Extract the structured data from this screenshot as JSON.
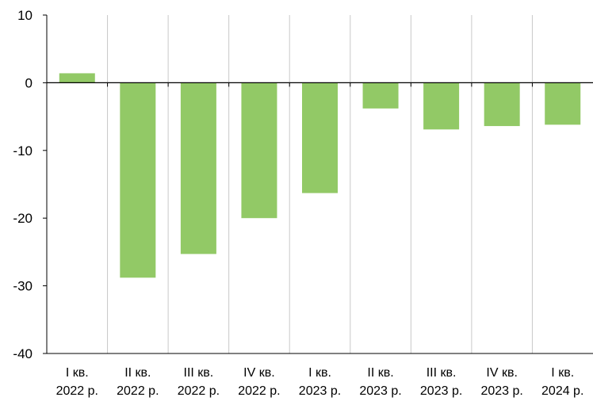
{
  "chart_data": {
    "type": "bar",
    "categories": [
      [
        "I кв.",
        "2022 р."
      ],
      [
        "II кв.",
        "2022 р."
      ],
      [
        "III кв.",
        "2022 р."
      ],
      [
        "IV кв.",
        "2022 р."
      ],
      [
        "I кв.",
        "2023 р."
      ],
      [
        "II кв.",
        "2023 р."
      ],
      [
        "III кв.",
        "2023 р."
      ],
      [
        "IV кв.",
        "2023 р."
      ],
      [
        "I кв.",
        "2024 р."
      ]
    ],
    "values": [
      1.4,
      -28.8,
      -25.3,
      -20.0,
      -16.3,
      -3.8,
      -6.9,
      -6.4,
      -6.2
    ],
    "ylim": [
      -40,
      10
    ],
    "yticks": [
      10,
      0,
      -10,
      -20,
      -30,
      -40
    ],
    "grid": "vertical",
    "colors": {
      "bar": "#92c966",
      "grid": "#c8c8c8",
      "axis": "#000000"
    }
  }
}
